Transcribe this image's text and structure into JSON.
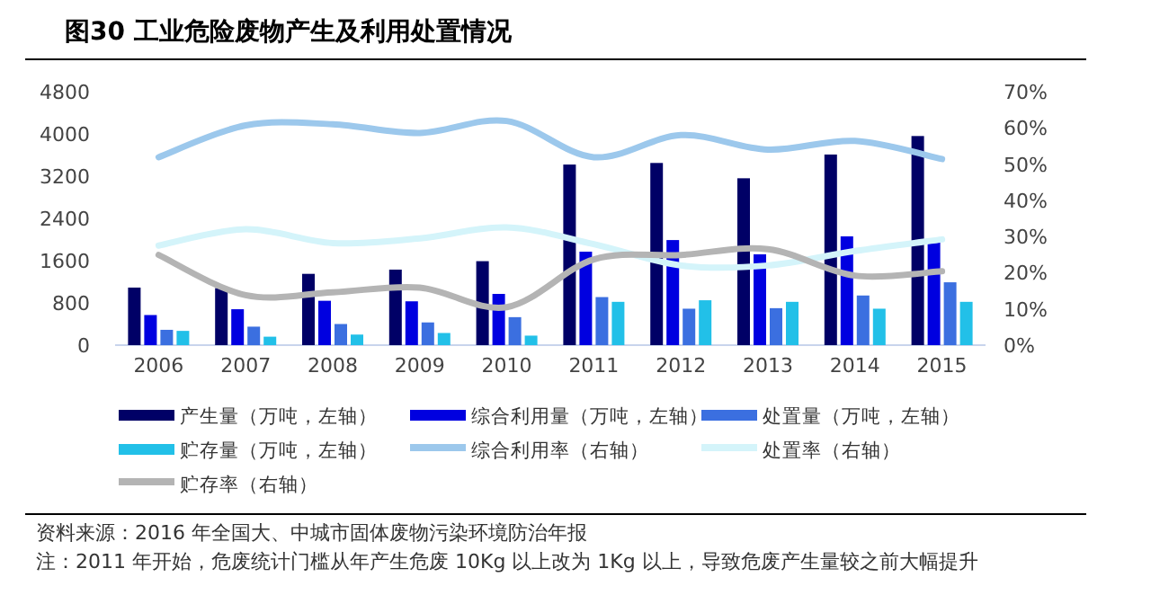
{
  "chart_data": {
    "type": "bar",
    "title": "图30 工业危险废物产生及利用处置情况",
    "categories": [
      "2006",
      "2007",
      "2008",
      "2009",
      "2010",
      "2011",
      "2012",
      "2013",
      "2014",
      "2015"
    ],
    "series": [
      {
        "name": "产生量（万吨，左轴）",
        "color": "#000066",
        "values": [
          1090,
          1080,
          1350,
          1430,
          1590,
          3420,
          3450,
          3160,
          3610,
          3960
        ]
      },
      {
        "name": "综合利用量（万吨，左轴）",
        "color": "#0000e0",
        "values": [
          570,
          680,
          840,
          830,
          970,
          1770,
          1990,
          1720,
          2060,
          1940
        ]
      },
      {
        "name": "处置量（万吨，左轴）",
        "color": "#3b6fe0",
        "values": [
          290,
          350,
          400,
          430,
          530,
          910,
          690,
          700,
          940,
          1190
        ]
      },
      {
        "name": "贮存量（万吨，左轴）",
        "color": "#22c0e8",
        "values": [
          270,
          160,
          200,
          230,
          180,
          820,
          850,
          820,
          690,
          820
        ]
      },
      {
        "name": "综合利用率（右轴）",
        "type": "line",
        "axis": "y2",
        "color": "#9cc8ec",
        "values": [
          51.9,
          60.7,
          61,
          58.6,
          61.9,
          51.9,
          58,
          54,
          56.4,
          51.4
        ]
      },
      {
        "name": "处置率（右轴）",
        "type": "line",
        "axis": "y2",
        "color": "#d4f4fa",
        "values": [
          27.5,
          32,
          28.2,
          29.5,
          32.5,
          27.9,
          22,
          22,
          26,
          29.2
        ]
      },
      {
        "name": "贮存率（右轴）",
        "type": "line",
        "axis": "y2",
        "color": "#b4b4b4",
        "values": [
          24.9,
          13.8,
          14.6,
          15.9,
          10.5,
          23.7,
          24.9,
          26.5,
          19.2,
          20.4
        ]
      }
    ],
    "ylim": [
      0,
      4800
    ],
    "yticks": [
      0,
      800,
      1600,
      2400,
      3200,
      4000,
      4800
    ],
    "y2lim": [
      0,
      70
    ],
    "y2ticks": [
      {
        "value": 0,
        "label": "0%"
      },
      {
        "value": 10,
        "label": "10%"
      },
      {
        "value": 20,
        "label": "20%"
      },
      {
        "value": 30,
        "label": "30%"
      },
      {
        "value": 40,
        "label": "40%"
      },
      {
        "value": 50,
        "label": "50%"
      },
      {
        "value": 60,
        "label": "60%"
      },
      {
        "value": 70,
        "label": "70%"
      }
    ],
    "legend": "bottom",
    "annotations": [
      "资料来源：2016 年全国大、中城市固体废物污染环境防治年报",
      "注：2011 年开始，危废统计门槛从年产生危废 10Kg 以上改为 1Kg 以上，导致危废产生量较之前大幅提升"
    ]
  }
}
